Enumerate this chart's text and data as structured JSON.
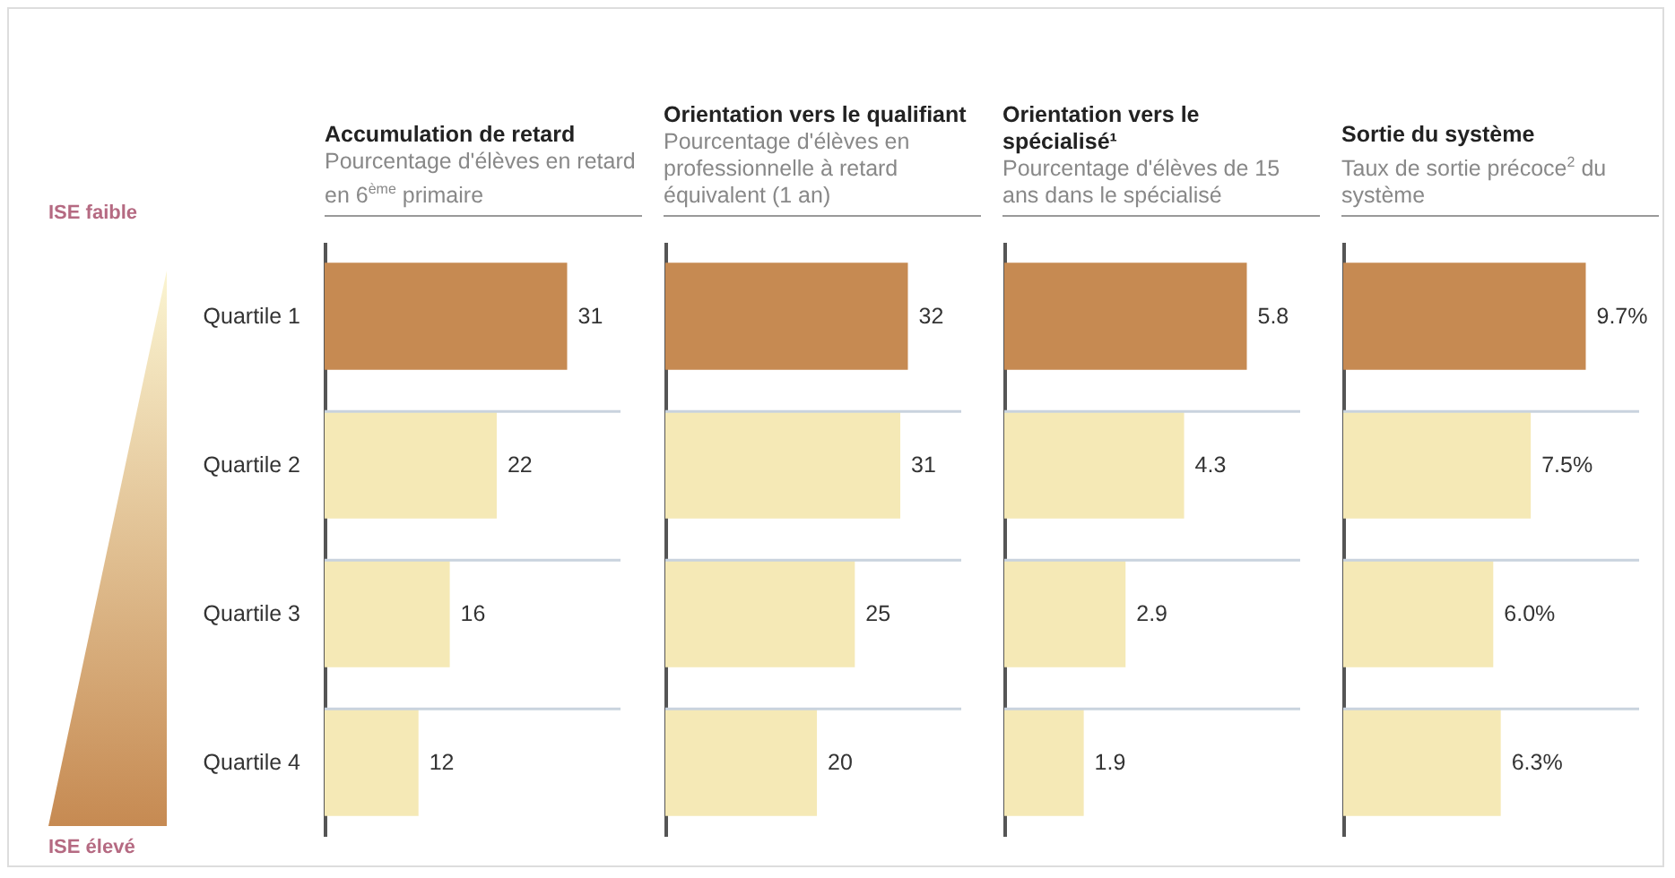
{
  "chart_data": [
    {
      "type": "bar",
      "orientation": "horizontal",
      "title": "Accumulation de retard",
      "subtitle": "Pourcentage d'élèves en retard en 6$^{ème}$ primaire",
      "categories": [
        "Quartile 1",
        "Quartile 2",
        "Quartile 3",
        "Quartile 4"
      ],
      "values": [
        31,
        22,
        16,
        12
      ],
      "colors": [
        "#c68a52",
        "#f5e9b6",
        "#f5e9b6",
        "#f5e9b6"
      ],
      "data_labels": true,
      "grid": "y",
      "tick_labels": "y",
      "annotations": [
        "ISE faible",
        "ISE élevé"
      ]
    },
    {
      "type": "bar",
      "orientation": "horizontal",
      "title": "Orientation vers le qualifiant",
      "subtitle": "Pourcentage d'élèves en professionnelle à retard équivalent (1 an)",
      "categories": [
        null,
        null,
        null,
        null
      ],
      "values": [
        32,
        31,
        25,
        20
      ],
      "colors": [
        "#c68a52",
        "#f5e9b6",
        "#f5e9b6",
        "#f5e9b6"
      ],
      "data_labels": true,
      "grid": "y",
      "tick_labels": false
    },
    {
      "type": "bar",
      "orientation": "horizontal",
      "title": "Orientation vers le spécialisé¹",
      "subtitle": "Pourcentage d'élèves de 15 ans dans le spécialisé",
      "categories": [
        null,
        null,
        null,
        null
      ],
      "values": [
        5.8,
        4.3,
        2.9,
        1.9
      ],
      "colors": [
        "#c68a52",
        "#f5e9b6",
        "#f5e9b6",
        "#f5e9b6"
      ],
      "data_labels": true,
      "grid": "y",
      "tick_labels": false
    },
    {
      "type": "bar",
      "orientation": "horizontal",
      "title": "Sortie du système",
      "subtitle": "Taux de sortie précoce$^{2}$ du système",
      "categories": [
        null,
        null,
        null,
        null
      ],
      "values": [
        9.7,
        7.5,
        6.0,
        6.3
      ],
      "value_labels": [
        "9.7%",
        "7.5%",
        "6.0%",
        "6.3%"
      ],
      "colors": [
        "#c68a52",
        "#f5e9b6",
        "#f5e9b6",
        "#f5e9b6"
      ],
      "grid": "y",
      "tick_labels": false
    }
  ]
}
